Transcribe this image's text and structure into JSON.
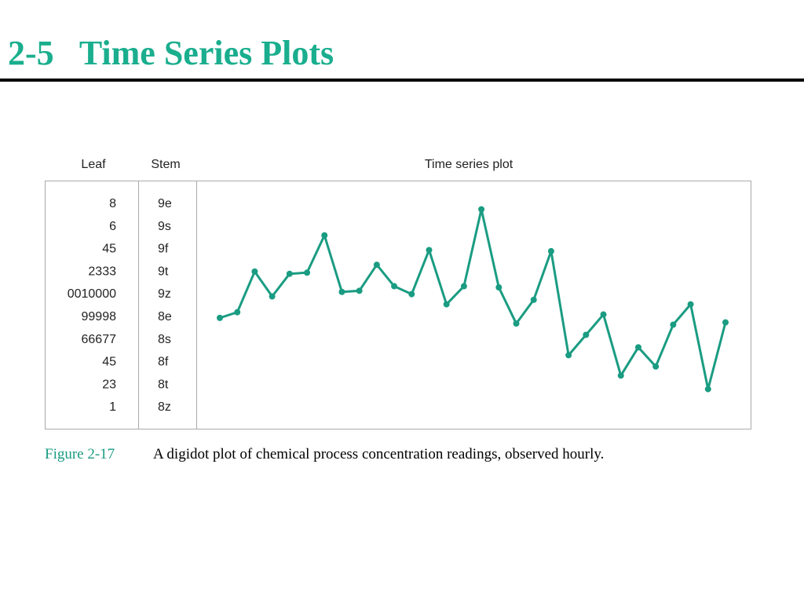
{
  "chart_data": {
    "type": "digidot",
    "title": "2-5   Time Series Plots",
    "headers": {
      "leaf": "Leaf",
      "stem": "Stem",
      "plot": "Time series plot"
    },
    "stems": [
      "9e",
      "9s",
      "9f",
      "9t",
      "9z",
      "8e",
      "8s",
      "8f",
      "8t",
      "8z"
    ],
    "leaves": [
      "8",
      "6",
      "45",
      "2333",
      "0010000",
      "99998",
      "66677",
      "45",
      "23",
      "1"
    ],
    "values": [
      88.3,
      88.8,
      92.4,
      90.2,
      92.2,
      92.3,
      95.6,
      90.6,
      90.7,
      93.0,
      91.1,
      90.4,
      94.3,
      89.5,
      91.1,
      97.9,
      91.0,
      87.8,
      89.9,
      94.2,
      85.0,
      86.8,
      88.6,
      83.2,
      85.7,
      84.0,
      87.7,
      89.5,
      82.0,
      87.9
    ],
    "ylim": [
      80,
      100
    ],
    "color": "#1a9c82",
    "caption": {
      "label": "Figure 2-17",
      "text": "A digidot plot of chemical process concentration readings, observed hourly."
    }
  }
}
